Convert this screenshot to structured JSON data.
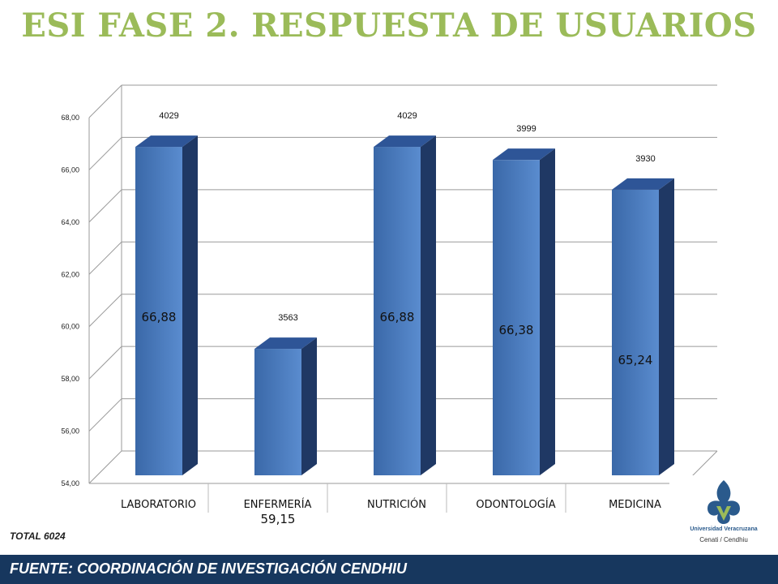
{
  "title": "ESI FASE 2. RESPUESTA DE USUARIOS",
  "total_label": "TOTAL 6024",
  "footer": "FUENTE:   COORDINACIÓN DE INVESTIGACIÓN CENDHIU",
  "logo": {
    "icon": "universidad-veracruzana-logo",
    "university": "Universidad Veracruzana",
    "subtitle": "Cenati / Cendhiu"
  },
  "colors": {
    "title": "#9bbb59",
    "bar": "#4f81bd",
    "bar_dark": "#1f3864",
    "footer": "#17375e"
  },
  "chart_data": {
    "type": "bar",
    "categories": [
      "LABORATORIO",
      "ENFERMERÍA",
      "NUTRICIÓN",
      "ODONTOLOGÍA",
      "MEDICINA"
    ],
    "values": [
      66.88,
      59.15,
      66.88,
      66.38,
      65.24
    ],
    "value_labels": [
      "66,88",
      "59,15",
      "66,88",
      "66,38",
      "65,24"
    ],
    "counts": [
      "4029",
      "3563",
      "4029",
      "3999",
      "3930"
    ],
    "ylim": [
      54,
      68
    ],
    "yticks": [
      "54,00",
      "56,00",
      "58,00",
      "60,00",
      "62,00",
      "64,00",
      "66,00",
      "68,00"
    ],
    "grid": true,
    "style": "3d"
  }
}
